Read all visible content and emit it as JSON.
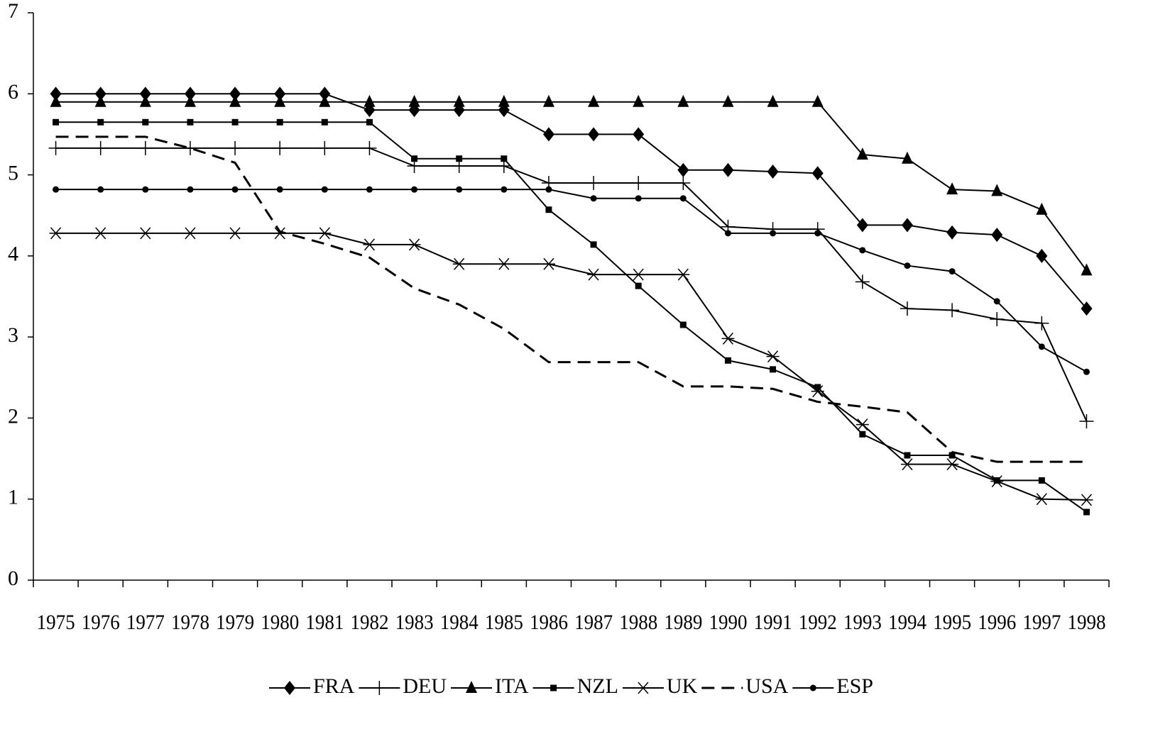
{
  "chart_data": {
    "type": "line",
    "categories": [
      "1975",
      "1976",
      "1977",
      "1978",
      "1979",
      "1980",
      "1981",
      "1982",
      "1983",
      "1984",
      "1985",
      "1986",
      "1987",
      "1988",
      "1989",
      "1990",
      "1991",
      "1992",
      "1993",
      "1994",
      "1995",
      "1996",
      "1997",
      "1998"
    ],
    "ylim": [
      0,
      7
    ],
    "yticks": [
      0,
      1,
      2,
      3,
      4,
      5,
      6,
      7
    ],
    "grid": false,
    "legend": "bottom",
    "series": [
      {
        "name": "FRA",
        "color": "#000000",
        "marker": "diamond",
        "dash": false,
        "values": [
          6.0,
          6.0,
          6.0,
          6.0,
          6.0,
          6.0,
          6.0,
          5.8,
          5.8,
          5.8,
          5.8,
          5.5,
          5.5,
          5.5,
          5.06,
          5.06,
          5.04,
          5.02,
          4.38,
          4.38,
          4.29,
          4.26,
          4.0,
          3.35
        ]
      },
      {
        "name": "DEU",
        "color": "#000000",
        "marker": "plus",
        "dash": false,
        "values": [
          5.33,
          5.33,
          5.33,
          5.33,
          5.33,
          5.33,
          5.33,
          5.33,
          5.11,
          5.11,
          5.11,
          4.9,
          4.9,
          4.9,
          4.9,
          4.36,
          4.33,
          4.33,
          3.68,
          3.35,
          3.33,
          3.22,
          3.17,
          1.96
        ]
      },
      {
        "name": "ITA",
        "color": "#000000",
        "marker": "triangle",
        "dash": false,
        "values": [
          5.9,
          5.9,
          5.9,
          5.9,
          5.9,
          5.9,
          5.9,
          5.9,
          5.9,
          5.9,
          5.9,
          5.9,
          5.9,
          5.9,
          5.9,
          5.9,
          5.9,
          5.9,
          5.25,
          5.2,
          4.82,
          4.8,
          4.57,
          3.82
        ]
      },
      {
        "name": "NZL",
        "color": "#000000",
        "marker": "square",
        "dash": false,
        "values": [
          5.65,
          5.65,
          5.65,
          5.65,
          5.65,
          5.65,
          5.65,
          5.65,
          5.2,
          5.2,
          5.2,
          4.57,
          4.14,
          3.63,
          3.15,
          2.71,
          2.6,
          2.38,
          1.8,
          1.54,
          1.54,
          1.23,
          1.23,
          0.84
        ]
      },
      {
        "name": "UK",
        "color": "#000000",
        "marker": "asterisk",
        "dash": false,
        "values": [
          4.28,
          4.28,
          4.28,
          4.28,
          4.28,
          4.28,
          4.28,
          4.14,
          4.14,
          3.9,
          3.9,
          3.9,
          3.77,
          3.77,
          3.77,
          2.98,
          2.76,
          2.33,
          1.92,
          1.43,
          1.43,
          1.22,
          1.0,
          0.99
        ]
      },
      {
        "name": "USA",
        "color": "#000000",
        "marker": "none",
        "dash": true,
        "values": [
          5.47,
          5.47,
          5.47,
          5.33,
          5.15,
          4.3,
          4.15,
          3.98,
          3.6,
          3.4,
          3.1,
          2.69,
          2.69,
          2.69,
          2.39,
          2.39,
          2.36,
          2.2,
          2.14,
          2.07,
          1.58,
          1.46,
          1.46,
          1.46
        ]
      },
      {
        "name": "ESP",
        "color": "#000000",
        "marker": "circle",
        "dash": false,
        "values": [
          4.82,
          4.82,
          4.82,
          4.82,
          4.82,
          4.82,
          4.82,
          4.82,
          4.82,
          4.82,
          4.82,
          4.82,
          4.71,
          4.71,
          4.71,
          4.28,
          4.28,
          4.28,
          4.07,
          3.88,
          3.81,
          3.44,
          2.88,
          2.57
        ]
      }
    ]
  }
}
